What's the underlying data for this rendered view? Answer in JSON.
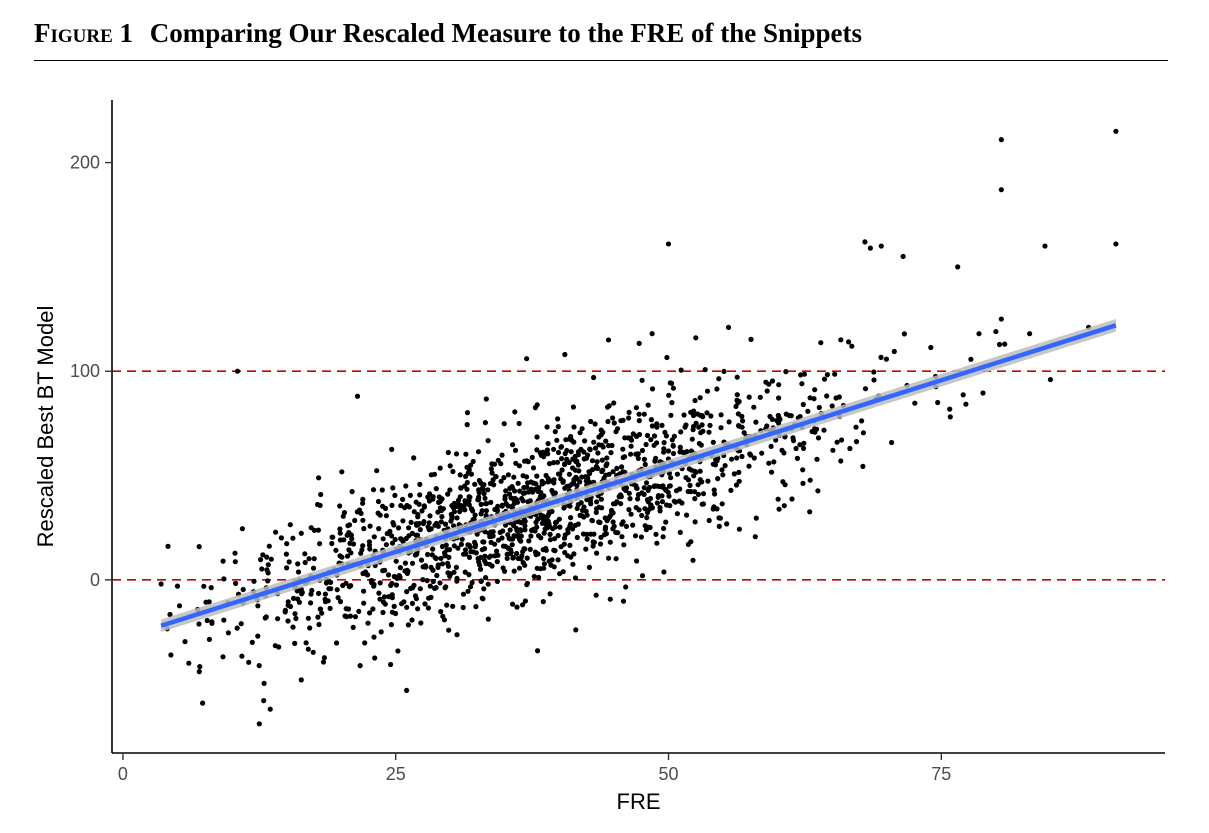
{
  "figure": {
    "number": "Figure 1",
    "title": "Comparing Our Rescaled Measure to the FRE of the Snippets"
  },
  "chart_data": {
    "type": "scatter",
    "xlabel": "FRE",
    "ylabel": "Rescaled Best BT Model",
    "xlim": [
      -1,
      95.5
    ],
    "ylim": [
      -83,
      230
    ],
    "x_ticks": [
      0,
      25,
      50,
      75
    ],
    "y_ticks": [
      0,
      100,
      200
    ],
    "grid": false,
    "point_color": "#000000",
    "reference_lines": [
      {
        "y": 0,
        "style": "dashed",
        "color": "#cc0000"
      },
      {
        "y": 100,
        "style": "dashed",
        "color": "#cc0000"
      }
    ],
    "fit_line": {
      "type": "linear",
      "color": "#3366ff",
      "ci_band_color": "#bdbdbd",
      "start": [
        3.5,
        -22
      ],
      "end": [
        91,
        122
      ],
      "ci_halfwidth_at_ends": 3
    },
    "point_cloud": {
      "approx_count": 1600,
      "slope": 1.65,
      "intercept": -27.8,
      "x_range": [
        3.5,
        90
      ],
      "residual_sd": 19
    },
    "outliers": [
      [
        80.5,
        211
      ],
      [
        91,
        215
      ],
      [
        80.5,
        187
      ],
      [
        50,
        161
      ],
      [
        91,
        161
      ],
      [
        84.5,
        160
      ],
      [
        68,
        162
      ],
      [
        68.5,
        159
      ],
      [
        69.5,
        160
      ],
      [
        71.5,
        155
      ],
      [
        76.5,
        150
      ],
      [
        80.5,
        125
      ],
      [
        80,
        119
      ],
      [
        88.5,
        121
      ],
      [
        85,
        96
      ],
      [
        10.5,
        100
      ],
      [
        21.5,
        88
      ],
      [
        37,
        106
      ],
      [
        40.5,
        108
      ],
      [
        55.5,
        121
      ],
      [
        48.5,
        118
      ],
      [
        52.5,
        116
      ],
      [
        44.5,
        115
      ],
      [
        12.5,
        -69
      ],
      [
        13.5,
        -62
      ],
      [
        7,
        -44
      ],
      [
        38,
        -34
      ],
      [
        41.5,
        -24
      ],
      [
        26,
        -53
      ],
      [
        3.5,
        -2
      ],
      [
        5,
        -3
      ]
    ]
  }
}
